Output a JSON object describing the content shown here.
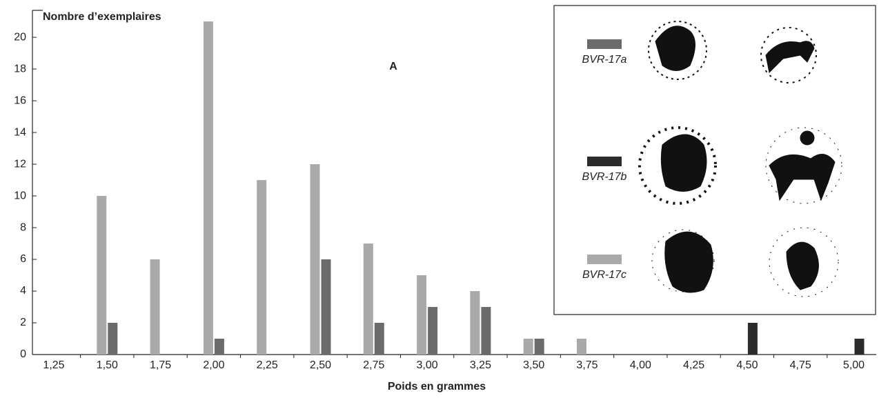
{
  "chart_data": {
    "type": "bar",
    "y_label": "Nombre d’exemplaires",
    "x_label": "Poids en grammes",
    "annotation": "A",
    "categories": [
      "1,25",
      "1,50",
      "1,75",
      "2,00",
      "2,25",
      "2,50",
      "2,75",
      "3,00",
      "3,25",
      "3,50",
      "3,75",
      "4,00",
      "4,25",
      "4,50",
      "4,75",
      "5,00"
    ],
    "series": [
      {
        "name": "BVR-17c",
        "color": "#a9a9ab",
        "values": [
          0,
          10,
          6,
          21,
          11,
          12,
          7,
          5,
          4,
          1,
          1,
          0,
          0,
          0,
          0,
          0
        ]
      },
      {
        "name": "BVR-17a",
        "color": "#6b6b6d",
        "values": [
          0,
          2,
          0,
          1,
          0,
          6,
          2,
          3,
          3,
          1,
          0,
          0,
          0,
          0,
          0,
          0
        ]
      },
      {
        "name": "BVR-17b",
        "color": "#2b2b2b",
        "values": [
          0,
          0,
          0,
          0,
          0,
          0,
          0,
          0,
          0,
          0,
          0,
          0,
          0,
          2,
          0,
          1
        ]
      }
    ],
    "ylim": [
      0,
      21.7
    ],
    "yticks": [
      0,
      2,
      4,
      6,
      8,
      10,
      12,
      14,
      16,
      18,
      20
    ]
  }
}
